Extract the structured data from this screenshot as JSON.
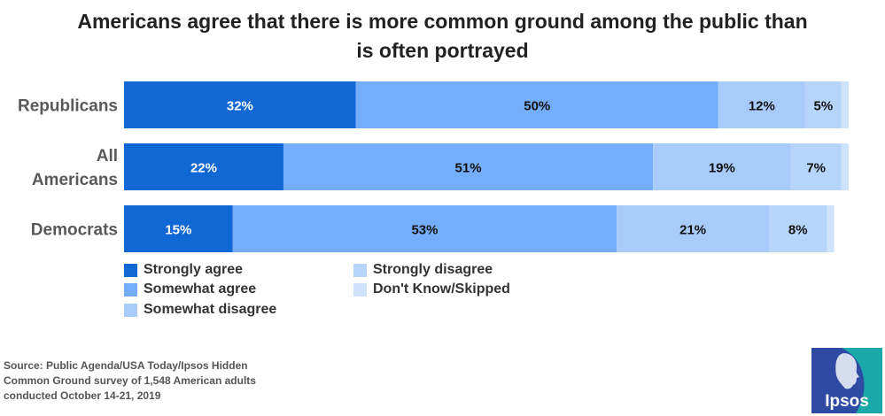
{
  "title_lines": [
    "Americans agree that there is more common ground among the public than",
    "is often portrayed"
  ],
  "source_lines": [
    "Source: Public Agenda/USA Today/Ipsos Hidden",
    "Common Ground survey of 1,548 American adults",
    "conducted October 14-21, 2019"
  ],
  "logo_text": "Ipsos",
  "chart_data": {
    "type": "bar",
    "orientation": "horizontal",
    "stacked": true,
    "categories": [
      "Republicans",
      "All Americans",
      "Democrats"
    ],
    "category_display": [
      [
        "Republicans"
      ],
      [
        "All",
        "Americans"
      ],
      [
        "Democrats"
      ]
    ],
    "xlim": [
      0,
      100
    ],
    "grid": false,
    "legend_position": "bottom",
    "series": [
      {
        "name": "Strongly agree",
        "values": [
          32,
          22,
          15
        ],
        "labels": [
          "32%",
          "22%",
          "15%"
        ],
        "color": "#1167d4",
        "label_color": "#ffffff"
      },
      {
        "name": "Somewhat agree",
        "values": [
          50,
          51,
          53
        ],
        "labels": [
          "50%",
          "51%",
          "53%"
        ],
        "color": "#74adf9",
        "label_color": "#111111"
      },
      {
        "name": "Somewhat disagree",
        "values": [
          12,
          19,
          21
        ],
        "labels": [
          "12%",
          "19%",
          "21%"
        ],
        "color": "#a7cbfb",
        "label_color": "#111111"
      },
      {
        "name": "Strongly disagree",
        "values": [
          5,
          7,
          8
        ],
        "labels": [
          "5%",
          "7%",
          "8%"
        ],
        "color": "#b7d5fb",
        "label_color": "#111111"
      },
      {
        "name": "Don't Know/Skipped",
        "values": [
          1,
          1,
          1
        ],
        "labels": [
          "",
          "",
          ""
        ],
        "color": "#cfe2fc",
        "label_color": "#111111"
      }
    ]
  },
  "colors": {
    "title": "#222222",
    "category_label": "#595959",
    "logo_blue": "#2e4aa3",
    "logo_teal": "#1aa9a8"
  }
}
